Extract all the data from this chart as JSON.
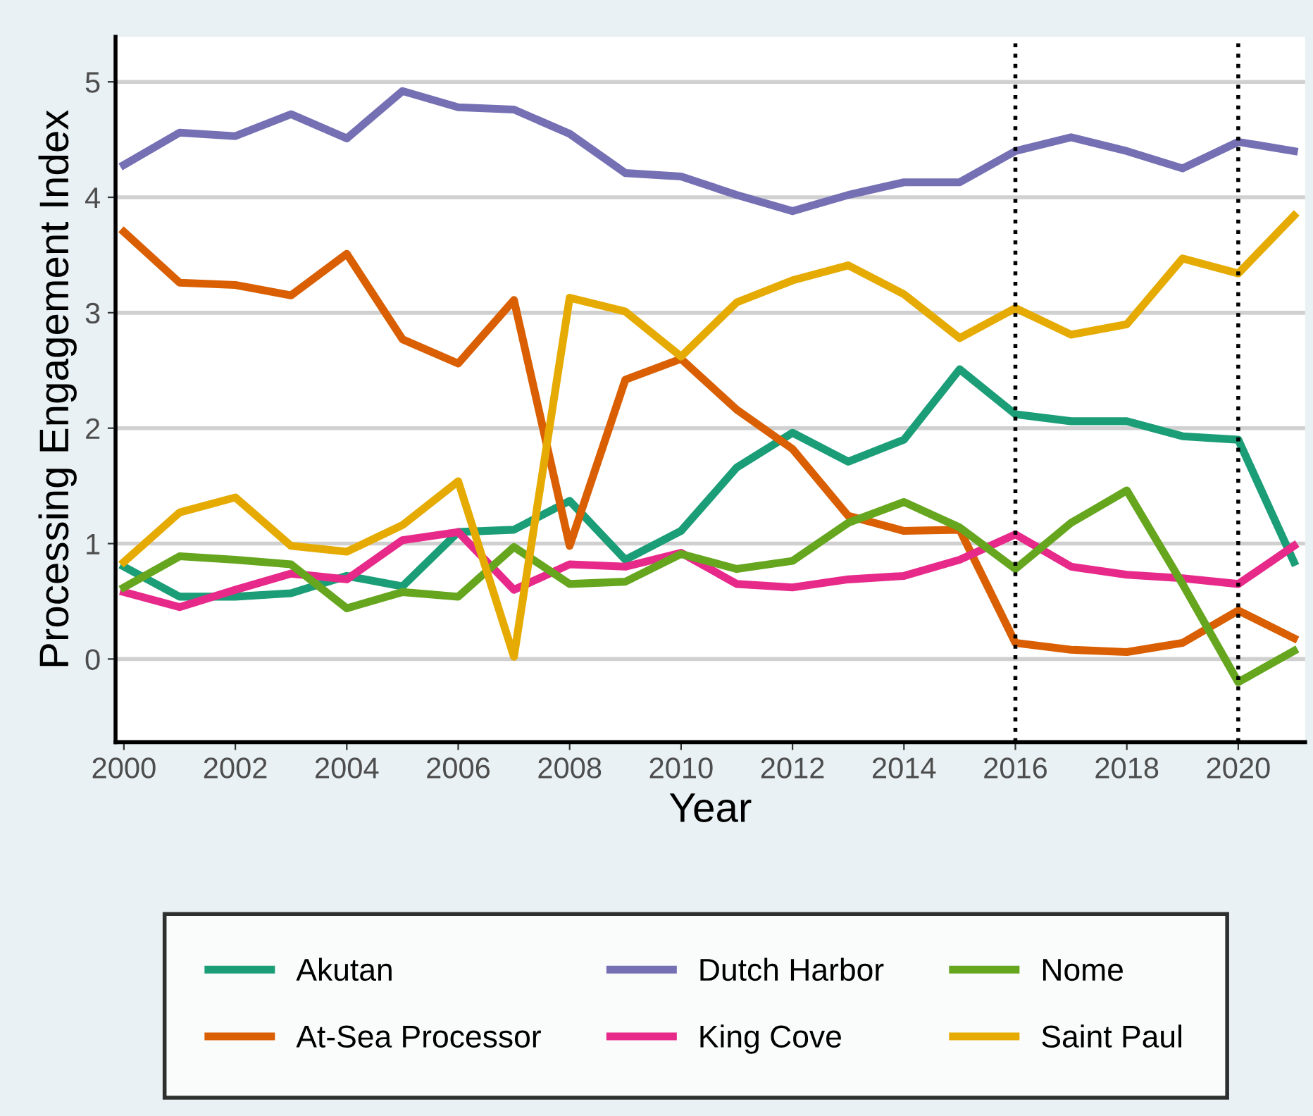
{
  "chart_data": {
    "type": "line",
    "xlabel": "Year",
    "ylabel": "Processing Engagement Index",
    "x": [
      2000,
      2001,
      2002,
      2003,
      2004,
      2005,
      2006,
      2007,
      2008,
      2009,
      2010,
      2011,
      2012,
      2013,
      2014,
      2015,
      2016,
      2017,
      2018,
      2019,
      2020,
      2021
    ],
    "xlim": [
      1999.85,
      2021.2
    ],
    "xticks": [
      2000,
      2002,
      2004,
      2006,
      2008,
      2010,
      2012,
      2014,
      2016,
      2018,
      2020
    ],
    "ylim": [
      -0.72,
      5.39
    ],
    "yticks": [
      0,
      1,
      2,
      3,
      4,
      5
    ],
    "grid": "y",
    "legend": "bottom",
    "line_style": "solid",
    "marker": "none",
    "ref_lines": [
      {
        "axis": "x",
        "value": 2016,
        "color": "#000000",
        "line_style": "dotted"
      },
      {
        "axis": "x",
        "value": 2020,
        "color": "#000000",
        "line_style": "dotted"
      }
    ],
    "series": [
      {
        "name": "Akutan",
        "color": "#1b9e77",
        "values": [
          0.8,
          0.54,
          0.54,
          0.57,
          0.72,
          0.63,
          1.1,
          1.12,
          1.37,
          0.86,
          1.11,
          1.66,
          1.96,
          1.71,
          1.9,
          2.51,
          2.12,
          2.06,
          2.06,
          1.93,
          1.9,
          0.84
        ]
      },
      {
        "name": "At-Sea Processor",
        "color": "#d95f02",
        "values": [
          3.7,
          3.26,
          3.24,
          3.15,
          3.51,
          2.77,
          2.56,
          3.11,
          0.98,
          2.42,
          2.6,
          2.16,
          1.82,
          1.24,
          1.11,
          1.12,
          0.14,
          0.08,
          0.06,
          0.14,
          0.42,
          0.18
        ]
      },
      {
        "name": "Dutch Harbor",
        "color": "#7570b3",
        "values": [
          4.28,
          4.56,
          4.53,
          4.72,
          4.51,
          4.92,
          4.78,
          4.76,
          4.55,
          4.21,
          4.18,
          4.02,
          3.88,
          4.02,
          4.13,
          4.13,
          4.4,
          4.52,
          4.4,
          4.25,
          4.48,
          4.4
        ]
      },
      {
        "name": "King Cove",
        "color": "#e7298a",
        "values": [
          0.58,
          0.45,
          0.6,
          0.74,
          0.69,
          1.03,
          1.1,
          0.6,
          0.82,
          0.8,
          0.92,
          0.65,
          0.62,
          0.69,
          0.72,
          0.86,
          1.08,
          0.8,
          0.73,
          0.7,
          0.65,
          0.98
        ]
      },
      {
        "name": "Nome",
        "color": "#66a61e",
        "values": [
          0.62,
          0.89,
          0.86,
          0.82,
          0.44,
          0.58,
          0.54,
          0.97,
          0.65,
          0.67,
          0.91,
          0.78,
          0.85,
          1.18,
          1.36,
          1.14,
          0.78,
          1.18,
          1.46,
          0.65,
          -0.2,
          0.07
        ]
      },
      {
        "name": "Saint Paul",
        "color": "#e6ab02",
        "values": [
          0.84,
          1.27,
          1.4,
          0.98,
          0.93,
          1.16,
          1.54,
          0.02,
          3.13,
          3.01,
          2.62,
          3.09,
          3.28,
          3.41,
          3.16,
          2.78,
          3.04,
          2.81,
          2.9,
          3.47,
          3.34,
          3.84
        ]
      }
    ]
  }
}
